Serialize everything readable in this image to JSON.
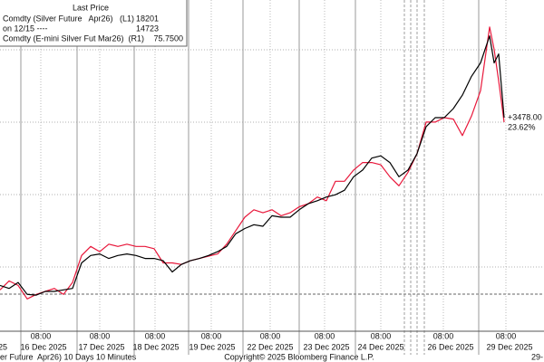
{
  "chart_data": {
    "type": "line",
    "legend": {
      "title": "Last Price"
    },
    "reference": {
      "label": "on 12/15 ----",
      "value": 14723
    },
    "change": {
      "value": 3478,
      "label": "+3478.00"
    },
    "change_pct": {
      "value": 23.62,
      "label": "23.62%"
    },
    "footer": [
      "er Future  Apr26) 10 Days 10 Minutes",
      "Copyright© 2025 Bloomberg Finance L.P.",
      "29-"
    ],
    "x": [
      0,
      1,
      2,
      3,
      4,
      5,
      6,
      7,
      8,
      9,
      10,
      11,
      12,
      13,
      14,
      15,
      16,
      17,
      18,
      19,
      20,
      21,
      22,
      23,
      24,
      25,
      26,
      27,
      28,
      29,
      30,
      31,
      32,
      33,
      34,
      35,
      36,
      37,
      38,
      39,
      40,
      41,
      42,
      43,
      44,
      45,
      46,
      47,
      48,
      49,
      50,
      51,
      52,
      53,
      54,
      54.5,
      55,
      55.6
    ],
    "xlim": [
      0,
      60
    ],
    "ylim": [
      -5.4,
      39.3
    ],
    "xticks": [
      {
        "value": 4.5,
        "label": "08:00"
      },
      {
        "value": 11.0,
        "label": "08:00"
      },
      {
        "value": 17.1,
        "label": "08:00"
      },
      {
        "value": 23.3,
        "label": "08:00"
      },
      {
        "value": 29.8,
        "label": "08:00"
      },
      {
        "value": 35.8,
        "label": "08:00"
      },
      {
        "value": 42.0,
        "label": "08:00"
      },
      {
        "value": 48.9,
        "label": "08:00"
      },
      {
        "value": 55.8,
        "label": "08:00"
      }
    ],
    "x_date_ticks": [
      {
        "value": 0.3,
        "label": "25"
      },
      {
        "value": 4.8,
        "label": "16 Dec 2025"
      },
      {
        "value": 11.2,
        "label": "17 Dec 2025"
      },
      {
        "value": 17.2,
        "label": "18 Dec 2025"
      },
      {
        "value": 23.4,
        "label": "19 Dec 2025"
      },
      {
        "value": 29.8,
        "label": "22 Dec 2025"
      },
      {
        "value": 36.0,
        "label": "23 Dec 2025"
      },
      {
        "value": 42.0,
        "label": "24 Dec 2025"
      },
      {
        "value": 49.7,
        "label": "26 Dec 2025"
      },
      {
        "value": 56.2,
        "label": "29 Dec 2025"
      }
    ],
    "series": [
      {
        "name": "Comdty (E-mini Silver Fut Mar26)  (R1)",
        "color": "#e8173a",
        "last": 75.75,
        "last_label": "75.7500",
        "values": [
          0.6,
          1.8,
          1.2,
          -0.6,
          0,
          0.4,
          0.8,
          0,
          1.6,
          5.2,
          6.4,
          5.7,
          6.7,
          6.4,
          6.7,
          6.4,
          6.4,
          6.1,
          4.2,
          4.2,
          4.0,
          4.5,
          4.8,
          5.1,
          5.4,
          6.7,
          8.5,
          10.3,
          11.3,
          10.9,
          11.3,
          10.5,
          10.9,
          11.7,
          12.1,
          13.0,
          12.5,
          15.1,
          15.1,
          16.6,
          17.6,
          17.6,
          17.3,
          15.7,
          14.5,
          16.3,
          18.8,
          23.0,
          23.0,
          23.6,
          23.4,
          21.2,
          23.8,
          27.2,
          35.7,
          32.7,
          28.5,
          23.0
        ]
      },
      {
        "name": "Comdty (Silver Future   Apr26)   (L1)",
        "color": "#000000",
        "last": 18201,
        "values": [
          1.2,
          0.8,
          1.6,
          0,
          -0.1,
          0.4,
          0.4,
          0.6,
          0.8,
          4.2,
          5.2,
          5.4,
          4.8,
          5.2,
          5.4,
          5.2,
          4.8,
          4.8,
          4.5,
          3.0,
          4.0,
          4.5,
          4.8,
          5.2,
          5.7,
          6.4,
          8.1,
          8.8,
          9.3,
          9.1,
          10.5,
          10.3,
          10.3,
          11.3,
          12.1,
          12.5,
          13.0,
          13.3,
          13.9,
          15.7,
          16.6,
          18.2,
          18.5,
          17.6,
          15.7,
          16.6,
          18.8,
          22.4,
          23.6,
          23.6,
          24.8,
          26.6,
          29.1,
          30.9,
          34.5,
          30.9,
          32.1,
          23.6
        ]
      }
    ]
  }
}
